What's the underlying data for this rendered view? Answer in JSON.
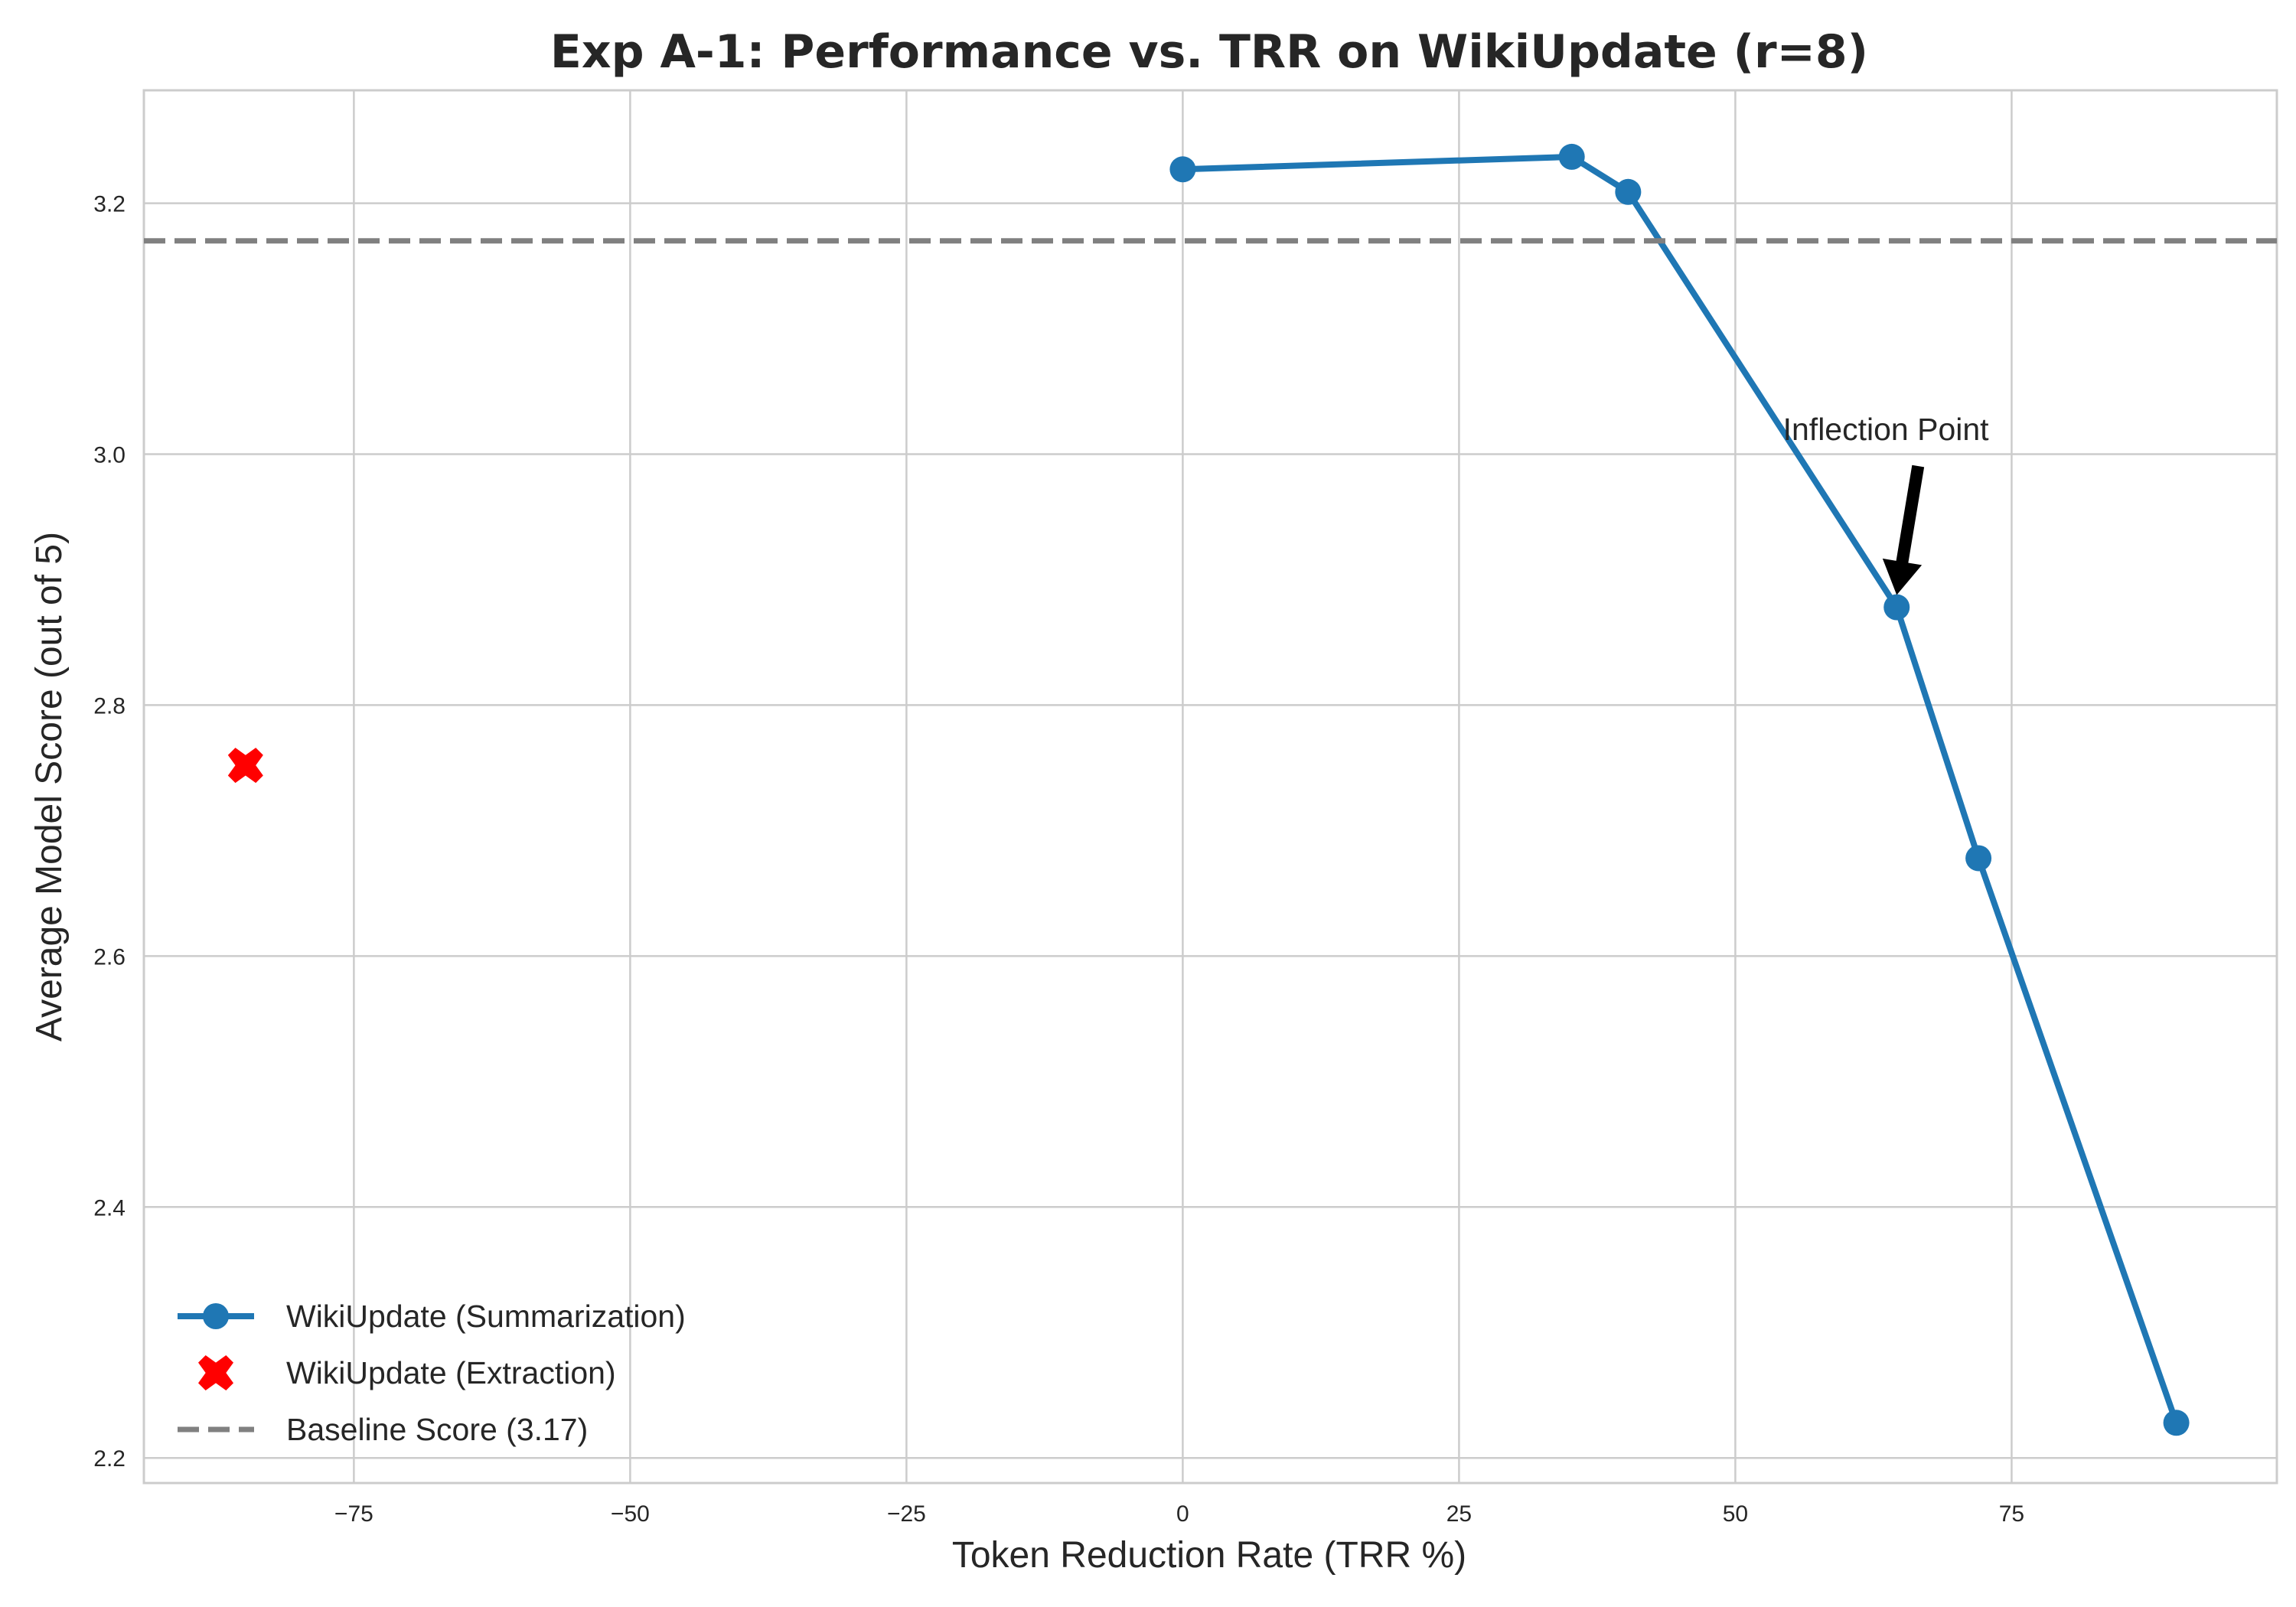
{
  "chart_data": {
    "type": "line",
    "title": "Exp A-1: Performance vs. TRR on WikiUpdate (r=8)",
    "xlabel": "Token Reduction Rate (TRR %)",
    "ylabel": "Average Model Score (out of 5)",
    "xlim": [
      -94,
      99
    ],
    "ylim": [
      2.18,
      3.29
    ],
    "xticks": [
      -75,
      -50,
      -25,
      0,
      25,
      50,
      75
    ],
    "xtick_labels": [
      "−75",
      "−50",
      "−25",
      "0",
      "25",
      "50",
      "75"
    ],
    "yticks": [
      2.2,
      2.4,
      2.6,
      2.8,
      3.0,
      3.2
    ],
    "ytick_labels": [
      "2.2",
      "2.4",
      "2.6",
      "2.8",
      "3.0",
      "3.2"
    ],
    "grid": true,
    "legend_position": "lower-left",
    "series": [
      {
        "name": "WikiUpdate (Summarization)",
        "kind": "line-marker",
        "color": "#1f77b4",
        "x": [
          0,
          35.2,
          40.3,
          64.6,
          72.0,
          89.9
        ],
        "y": [
          3.227,
          3.237,
          3.209,
          2.878,
          2.678,
          2.228
        ]
      },
      {
        "name": "WikiUpdate (Extraction)",
        "kind": "scatter-x",
        "color": "#ff0000",
        "x": [
          -84.8
        ],
        "y": [
          2.752
        ]
      },
      {
        "name": "Baseline Score (3.17)",
        "kind": "hline",
        "color": "#808080",
        "y": 3.17
      }
    ],
    "annotations": [
      {
        "text": "Inflection Point",
        "text_x": 55,
        "text_y": 3.01,
        "arrow_to_x": 64.6,
        "arrow_to_y": 2.878
      }
    ]
  }
}
